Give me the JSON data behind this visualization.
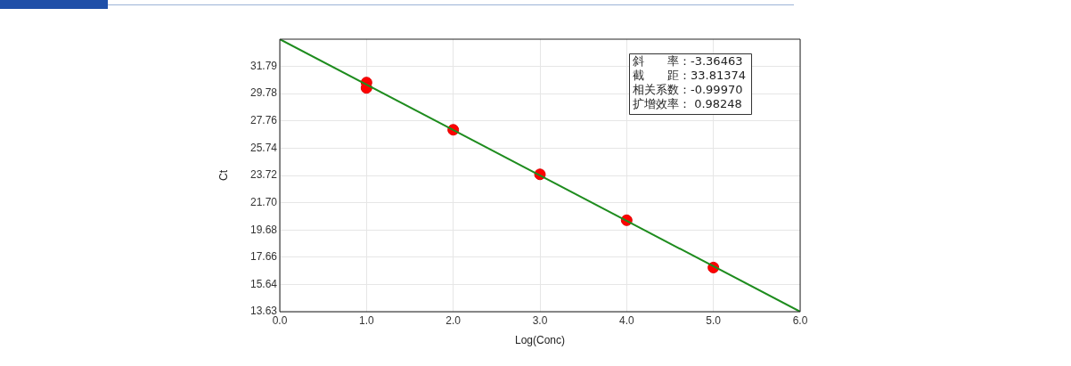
{
  "chart_data": {
    "type": "scatter",
    "xlabel": "Log(Conc)",
    "ylabel": "Ct",
    "xlim": [
      0,
      6
    ],
    "xticks": [
      {
        "value": 0,
        "label": "0.0"
      },
      {
        "value": 1,
        "label": "1.0"
      },
      {
        "value": 2,
        "label": "2.0"
      },
      {
        "value": 3,
        "label": "3.0"
      },
      {
        "value": 4,
        "label": "4.0"
      },
      {
        "value": 5,
        "label": "5.0"
      },
      {
        "value": 6,
        "label": "6.0"
      }
    ],
    "ylim": [
      13.63,
      33.81
    ],
    "yticks": [
      13.63,
      15.64,
      17.66,
      19.68,
      {
        "value": 21.7,
        "label": "21.70"
      },
      23.72,
      25.74,
      27.76,
      29.78,
      31.79
    ],
    "grid": true,
    "legend": false,
    "marker": "circle",
    "series": [
      {
        "type": "line",
        "color": "#1e8c1e",
        "x": [
          0,
          6
        ],
        "values": [
          33.81,
          13.63
        ],
        "marker": "none"
      },
      {
        "type": "scatter",
        "color": "#ff0000",
        "x": [
          1,
          1,
          2,
          3,
          4,
          5
        ],
        "values": [
          30.6,
          30.2,
          27.1,
          23.8,
          20.4,
          16.9
        ]
      }
    ],
    "annotations": [
      "斜　　率：-3.36463",
      "截　　距：33.81374",
      "相关系数：-0.99970",
      "扩增效率： 0.98248"
    ]
  }
}
